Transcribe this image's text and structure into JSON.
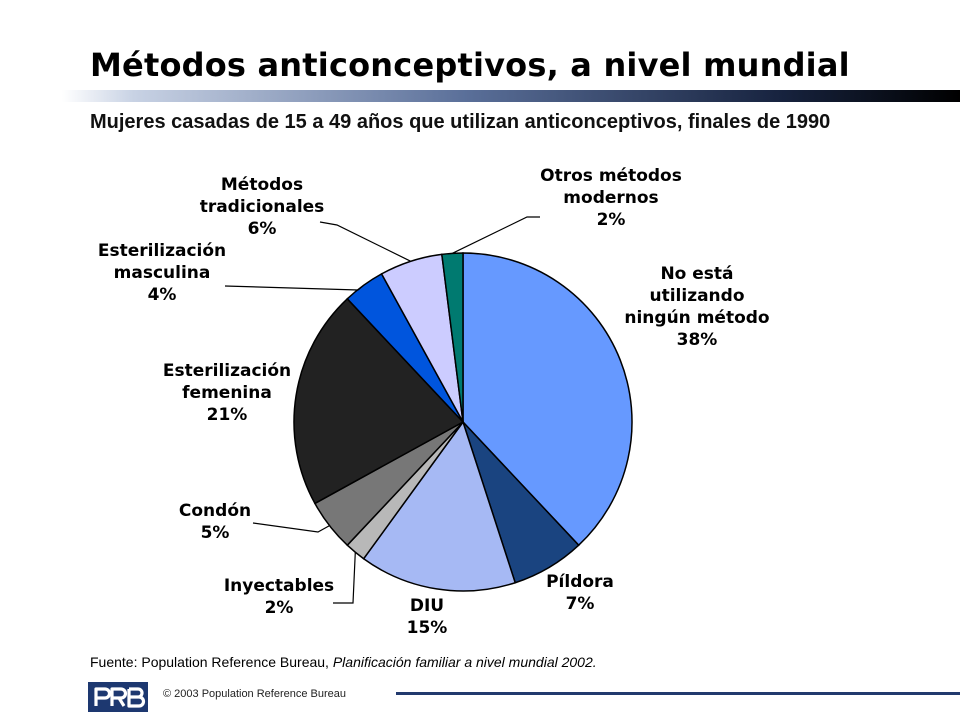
{
  "slide": {
    "title": "Métodos anticonceptivos, a nivel mundial",
    "subtitle": "Mujeres casadas de 15 a 49 años que utilizan anticonceptivos, finales de 1990",
    "source_prefix": "Fuente: Population Reference Bureau, ",
    "source_italic": "Planificación familiar a nivel mundial 2002.",
    "copyright": "© 2003 Population Reference Bureau",
    "logo": "PRB"
  },
  "chart_data": {
    "type": "pie",
    "title": "",
    "slices": [
      {
        "lines": [
          "No está",
          "utilizando",
          "ningún método"
        ],
        "value": 38,
        "label": "38%",
        "color": "#6699ff"
      },
      {
        "lines": [
          "Píldora"
        ],
        "value": 7,
        "label": "7%",
        "color": "#1a4480"
      },
      {
        "lines": [
          "DIU"
        ],
        "value": 15,
        "label": "15%",
        "color": "#a6b9f4"
      },
      {
        "lines": [
          "Inyectables"
        ],
        "value": 2,
        "label": "2%",
        "color": "#b8b8b8"
      },
      {
        "lines": [
          "Condón"
        ],
        "value": 5,
        "label": "5%",
        "color": "#777777"
      },
      {
        "lines": [
          "Esterilización",
          "femenina"
        ],
        "value": 21,
        "label": "21%",
        "color": "#222222"
      },
      {
        "lines": [
          "Esterilización",
          "masculina"
        ],
        "value": 4,
        "label": "4%",
        "color": "#0055dd"
      },
      {
        "lines": [
          "Métodos",
          "tradicionales"
        ],
        "value": 6,
        "label": "6%",
        "color": "#ccccff"
      },
      {
        "lines": [
          "Otros métodos",
          "modernos"
        ],
        "value": 2,
        "label": "2%",
        "color": "#007a70"
      }
    ]
  }
}
